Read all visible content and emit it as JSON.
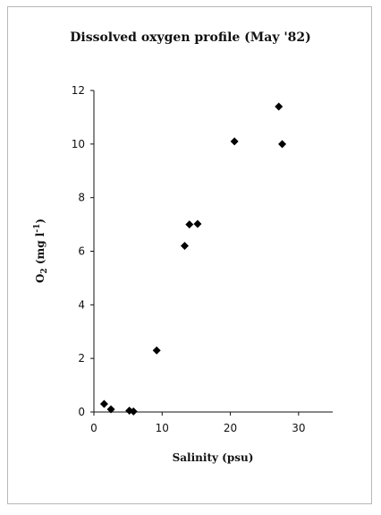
{
  "chart_data": {
    "type": "scatter",
    "title": "Dissolved oxygen profile (May '82)",
    "xlabel": "Salinity (psu)",
    "ylabel": "O2 (mg l-1)",
    "xlim": [
      0,
      35
    ],
    "ylim": [
      0,
      12
    ],
    "xticks": [
      0,
      10,
      20,
      30
    ],
    "yticks": [
      0,
      2,
      4,
      6,
      8,
      10,
      12
    ],
    "grid": false,
    "marker": "diamond",
    "marker_color": "#000000",
    "series": [
      {
        "x": [
          1.5,
          2.5,
          5.2,
          5.8,
          9.2,
          13.3,
          14.0,
          15.2,
          20.6,
          27.1,
          27.6
        ],
        "y": [
          0.3,
          0.1,
          0.05,
          0.02,
          2.3,
          6.2,
          7.0,
          7.02,
          10.1,
          11.4,
          10.0
        ]
      }
    ]
  }
}
